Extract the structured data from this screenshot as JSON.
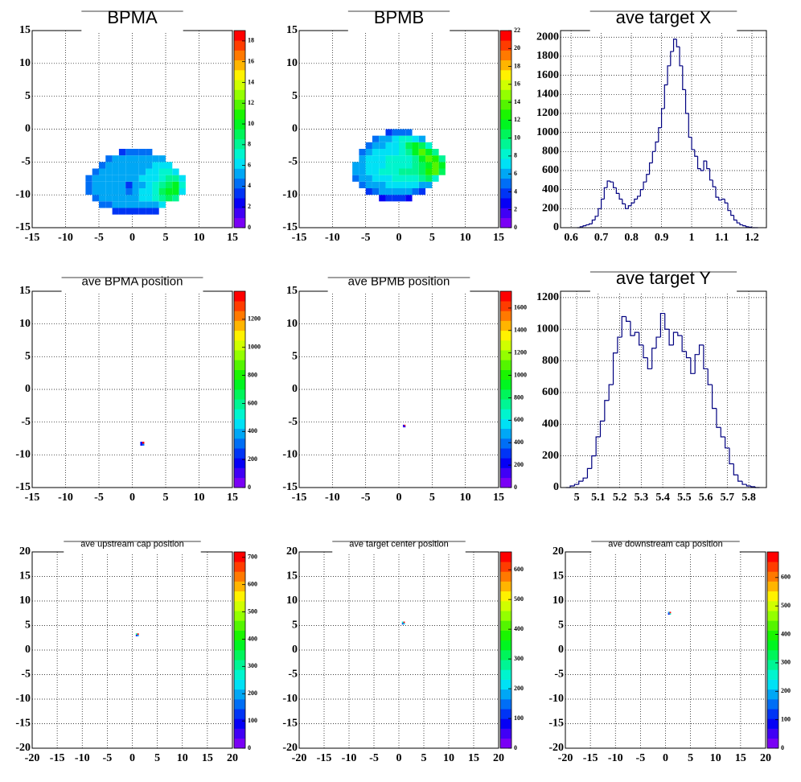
{
  "chart_data": [
    {
      "type": "heatmap",
      "title": "BPMA",
      "xlim": [
        -15,
        15
      ],
      "ylim": [
        -15,
        15
      ],
      "xticks": [
        -15,
        -10,
        -5,
        0,
        5,
        10,
        15
      ],
      "yticks": [
        -15,
        -10,
        -5,
        0,
        5,
        10,
        15
      ],
      "grid": true,
      "x_bins": [
        -7,
        -6,
        -5,
        -4,
        -3,
        -2,
        -1,
        0,
        1,
        2,
        3,
        4,
        5,
        6,
        7,
        8
      ],
      "y_bins": [
        -13,
        -12,
        -11,
        -10,
        -9,
        -8,
        -7,
        -6,
        -5,
        -4,
        -3
      ],
      "z": [
        [
          null,
          null,
          null,
          null,
          3,
          3,
          3,
          3,
          3,
          3,
          3,
          null,
          null,
          null,
          null
        ],
        [
          null,
          null,
          4,
          4,
          5,
          5,
          5,
          5,
          5,
          5,
          5,
          6,
          null,
          null,
          null
        ],
        [
          null,
          4,
          5,
          5,
          5,
          5,
          5,
          5,
          6,
          6,
          7,
          8,
          9,
          8,
          null
        ],
        [
          4,
          5,
          5,
          5,
          5,
          5,
          4,
          5,
          6,
          6,
          7,
          9,
          10,
          10,
          6
        ],
        [
          4,
          5,
          5,
          5,
          5,
          5,
          3,
          5,
          5,
          6,
          7,
          8,
          9,
          10,
          7
        ],
        [
          4,
          5,
          5,
          5,
          5,
          5,
          5,
          5,
          6,
          6,
          6,
          7,
          8,
          8,
          6
        ],
        [
          null,
          4,
          5,
          5,
          5,
          5,
          5,
          5,
          5,
          6,
          6,
          7,
          7,
          6,
          null
        ],
        [
          null,
          null,
          4,
          5,
          5,
          5,
          5,
          5,
          5,
          5,
          6,
          6,
          6,
          null,
          null
        ],
        [
          null,
          null,
          null,
          4,
          5,
          5,
          5,
          5,
          5,
          5,
          5,
          5,
          null,
          null,
          null
        ],
        [
          null,
          null,
          null,
          null,
          null,
          3,
          4,
          4,
          4,
          4,
          null,
          null,
          null,
          null,
          null
        ]
      ],
      "zlim": [
        0,
        19
      ],
      "zticks": [
        0,
        2,
        4,
        6,
        8,
        10,
        12,
        14,
        16,
        18
      ]
    },
    {
      "type": "heatmap",
      "title": "BPMB",
      "xlim": [
        -15,
        15
      ],
      "ylim": [
        -15,
        15
      ],
      "xticks": [
        -15,
        -10,
        -5,
        0,
        5,
        10,
        15
      ],
      "yticks": [
        -15,
        -10,
        -5,
        0,
        5,
        10,
        15
      ],
      "grid": true,
      "x_bins": [
        -7,
        -6,
        -5,
        -4,
        -3,
        -2,
        -1,
        0,
        1,
        2,
        3,
        4,
        5,
        6,
        7,
        8
      ],
      "y_bins": [
        -11,
        -10,
        -9,
        -8,
        -7,
        -6,
        -5,
        -4,
        -3,
        -2,
        -1,
        0
      ],
      "z": [
        [
          null,
          null,
          null,
          null,
          3,
          4,
          4,
          4,
          3,
          null,
          null,
          null,
          null,
          null,
          null
        ],
        [
          null,
          null,
          4,
          5,
          6,
          6,
          6,
          6,
          6,
          5,
          4,
          null,
          null,
          null,
          null
        ],
        [
          null,
          5,
          6,
          6,
          6,
          7,
          7,
          7,
          7,
          7,
          6,
          6,
          null,
          null,
          null
        ],
        [
          5,
          6,
          6,
          7,
          7,
          7,
          8,
          8,
          8,
          8,
          9,
          10,
          8,
          null,
          null
        ],
        [
          6,
          6,
          7,
          7,
          8,
          8,
          8,
          9,
          9,
          9,
          10,
          13,
          14,
          10,
          null
        ],
        [
          6,
          6,
          7,
          7,
          7,
          8,
          8,
          8,
          8,
          9,
          10,
          12,
          14,
          12,
          null
        ],
        [
          null,
          6,
          7,
          7,
          7,
          8,
          8,
          8,
          8,
          9,
          12,
          14,
          13,
          9,
          null
        ],
        [
          null,
          5,
          6,
          7,
          7,
          7,
          7,
          8,
          9,
          12,
          14,
          12,
          9,
          null,
          null
        ],
        [
          null,
          null,
          5,
          6,
          6,
          7,
          7,
          8,
          10,
          12,
          10,
          8,
          null,
          null,
          null
        ],
        [
          null,
          null,
          null,
          5,
          6,
          6,
          7,
          8,
          8,
          7,
          6,
          null,
          null,
          null,
          null
        ],
        [
          null,
          null,
          null,
          null,
          null,
          4,
          5,
          5,
          5,
          null,
          null,
          null,
          null,
          null,
          null
        ]
      ],
      "zlim": [
        0,
        22
      ],
      "zticks": [
        0,
        2,
        4,
        6,
        8,
        10,
        12,
        14,
        16,
        18,
        20,
        22
      ]
    },
    {
      "type": "histogram",
      "title": "ave target X",
      "xlim": [
        0.565,
        1.248
      ],
      "ylim": [
        0,
        2070
      ],
      "xticks": [
        0.6,
        0.7,
        0.8,
        0.9,
        1,
        1.1,
        1.2
      ],
      "yticks": [
        0,
        200,
        400,
        600,
        800,
        1000,
        1200,
        1400,
        1600,
        1800,
        2000
      ],
      "grid": true,
      "color": "#000080",
      "bins": [
        0.62,
        0.63,
        0.64,
        0.65,
        0.66,
        0.67,
        0.68,
        0.69,
        0.7,
        0.71,
        0.72,
        0.73,
        0.74,
        0.75,
        0.76,
        0.77,
        0.78,
        0.79,
        0.8,
        0.81,
        0.82,
        0.83,
        0.84,
        0.85,
        0.86,
        0.87,
        0.88,
        0.89,
        0.9,
        0.91,
        0.92,
        0.93,
        0.94,
        0.95,
        0.96,
        0.97,
        0.98,
        0.99,
        1.0,
        1.01,
        1.02,
        1.03,
        1.04,
        1.05,
        1.06,
        1.07,
        1.08,
        1.09,
        1.1,
        1.11,
        1.12,
        1.13,
        1.14,
        1.15,
        1.16,
        1.17,
        1.18,
        1.19,
        1.2,
        1.21,
        1.22
      ],
      "values": [
        0,
        10,
        20,
        30,
        40,
        80,
        120,
        200,
        300,
        420,
        490,
        480,
        420,
        360,
        300,
        250,
        200,
        230,
        260,
        300,
        330,
        400,
        480,
        560,
        680,
        800,
        900,
        1050,
        1250,
        1500,
        1700,
        1850,
        1980,
        1900,
        1700,
        1450,
        1200,
        950,
        820,
        750,
        620,
        600,
        700,
        620,
        500,
        430,
        320,
        290,
        300,
        260,
        180,
        130,
        80,
        50,
        30,
        20,
        10,
        5,
        0,
        0
      ]
    },
    {
      "type": "heatmap",
      "title": "ave BPMA position",
      "xlim": [
        -15,
        15
      ],
      "ylim": [
        -15,
        15
      ],
      "xticks": [
        -15,
        -10,
        -5,
        0,
        5,
        10,
        15
      ],
      "yticks": [
        -15,
        -10,
        -5,
        0,
        5,
        10,
        15
      ],
      "grid": true,
      "x_bins": [
        1.2,
        1.5,
        1.8
      ],
      "y_bins": [
        -8.6,
        -8.3,
        -8.0
      ],
      "z": [
        [
          150,
          300
        ],
        [
          200,
          1350
        ]
      ],
      "zlim": [
        0,
        1400
      ],
      "zticks": [
        0,
        200,
        400,
        600,
        800,
        1000,
        1200
      ]
    },
    {
      "type": "heatmap",
      "title": "ave BPMB position",
      "xlim": [
        -15,
        15
      ],
      "ylim": [
        -15,
        15
      ],
      "xticks": [
        -15,
        -10,
        -5,
        0,
        5,
        10,
        15
      ],
      "yticks": [
        -15,
        -10,
        -5,
        0,
        5,
        10,
        15
      ],
      "grid": true,
      "x_bins": [
        0.6,
        0.8,
        1.0
      ],
      "y_bins": [
        -5.8,
        -5.6,
        -5.4
      ],
      "z": [
        [
          100,
          250
        ],
        [
          200,
          1700
        ]
      ],
      "zlim": [
        0,
        1750
      ],
      "zticks": [
        0,
        200,
        400,
        600,
        800,
        1000,
        1200,
        1400,
        1600
      ]
    },
    {
      "type": "histogram",
      "title": "ave target Y",
      "xlim": [
        4.925,
        5.882
      ],
      "ylim": [
        0,
        1240
      ],
      "xticks": [
        5,
        5.1,
        5.2,
        5.3,
        5.4,
        5.5,
        5.6,
        5.7,
        5.8
      ],
      "yticks": [
        0,
        200,
        400,
        600,
        800,
        1000,
        1200
      ],
      "grid": true,
      "color": "#000080",
      "bins": [
        4.95,
        4.97,
        4.99,
        5.01,
        5.03,
        5.05,
        5.07,
        5.09,
        5.11,
        5.13,
        5.15,
        5.17,
        5.19,
        5.21,
        5.23,
        5.25,
        5.27,
        5.29,
        5.31,
        5.33,
        5.35,
        5.37,
        5.39,
        5.41,
        5.43,
        5.45,
        5.47,
        5.49,
        5.51,
        5.53,
        5.55,
        5.57,
        5.59,
        5.61,
        5.63,
        5.65,
        5.67,
        5.69,
        5.71,
        5.73,
        5.75,
        5.77,
        5.79,
        5.81,
        5.83,
        5.85
      ],
      "values": [
        0,
        10,
        20,
        40,
        60,
        120,
        200,
        320,
        420,
        550,
        650,
        850,
        950,
        1080,
        1050,
        960,
        980,
        900,
        820,
        750,
        880,
        950,
        1100,
        1000,
        900,
        980,
        960,
        860,
        820,
        720,
        840,
        900,
        750,
        650,
        500,
        380,
        320,
        250,
        150,
        80,
        40,
        20,
        10,
        5,
        0
      ]
    },
    {
      "type": "heatmap",
      "title": "ave upstream cap position",
      "xlim": [
        -20,
        20
      ],
      "ylim": [
        -20,
        20
      ],
      "xticks": [
        -20,
        -15,
        -10,
        -5,
        0,
        5,
        10,
        15,
        20
      ],
      "yticks": [
        -20,
        -15,
        -10,
        -5,
        0,
        5,
        10,
        15,
        20
      ],
      "grid": true,
      "x_bins": [
        0.7,
        1.0,
        1.3
      ],
      "y_bins": [
        2.8,
        3.1,
        3.4
      ],
      "z": [
        [
          100,
          200
        ],
        [
          300,
          700
        ]
      ],
      "zlim": [
        0,
        720
      ],
      "zticks": [
        0,
        100,
        200,
        300,
        400,
        500,
        600,
        700
      ]
    },
    {
      "type": "heatmap",
      "title": "ave target center  position",
      "xlim": [
        -20,
        20
      ],
      "ylim": [
        -20,
        20
      ],
      "xticks": [
        -20,
        -15,
        -10,
        -5,
        0,
        5,
        10,
        15,
        20
      ],
      "yticks": [
        -20,
        -15,
        -10,
        -5,
        0,
        5,
        10,
        15,
        20
      ],
      "grid": true,
      "x_bins": [
        0.6,
        0.9,
        1.2
      ],
      "y_bins": [
        5.2,
        5.5,
        5.8
      ],
      "z": [
        [
          100,
          200
        ],
        [
          250,
          640
        ]
      ],
      "zlim": [
        0,
        660
      ],
      "zticks": [
        0,
        100,
        200,
        300,
        400,
        500,
        600
      ]
    },
    {
      "type": "heatmap",
      "title": "ave downstream cap position",
      "xlim": [
        -20,
        20
      ],
      "ylim": [
        -20,
        20
      ],
      "xticks": [
        -20,
        -15,
        -10,
        -5,
        0,
        5,
        10,
        15,
        20
      ],
      "yticks": [
        -20,
        -15,
        -10,
        -5,
        0,
        5,
        10,
        15,
        20
      ],
      "grid": true,
      "x_bins": [
        0.5,
        0.8,
        1.1
      ],
      "y_bins": [
        7.2,
        7.5,
        7.8
      ],
      "z": [
        [
          100,
          250
        ],
        [
          200,
          680
        ]
      ],
      "zlim": [
        0,
        690
      ],
      "zticks": [
        0,
        100,
        200,
        300,
        400,
        500,
        600
      ]
    }
  ]
}
